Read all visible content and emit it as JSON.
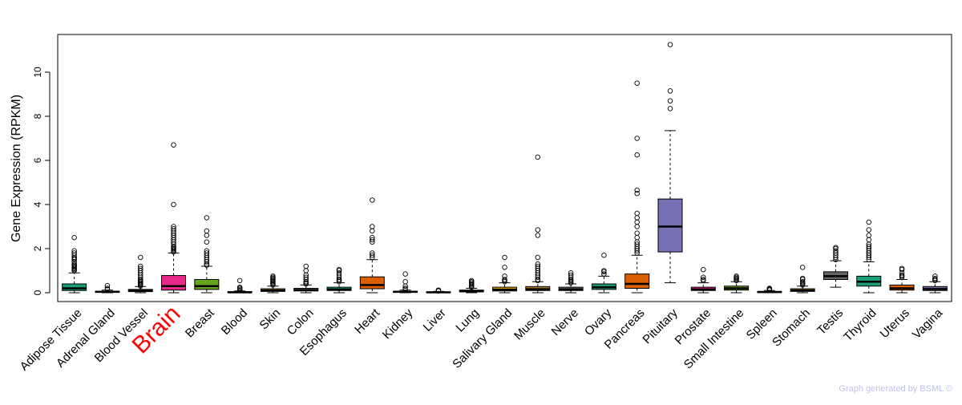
{
  "chart_data": {
    "type": "boxplot",
    "title": "",
    "ylabel": "Gene Expression (RPKM)",
    "xlabel": "",
    "ylim": [
      -0.4,
      11.6
    ],
    "yticks": [
      0,
      2,
      4,
      6,
      8,
      10
    ],
    "highlight": "Brain",
    "highlight_color": "#ff0000",
    "footer": "Graph generated by BSML ©",
    "footer_color": "#c0c0f0",
    "categories": [
      {
        "name": "Adipose Tissue",
        "color": "#1b9e77",
        "whisker_low": 0.0,
        "q1": 0.1,
        "median": 0.2,
        "q3": 0.4,
        "whisker_high": 0.9,
        "outliers": [
          1.0,
          1.05,
          1.1,
          1.15,
          1.2,
          1.25,
          1.3,
          1.4,
          1.5,
          1.55,
          1.6,
          1.7,
          1.8,
          1.9,
          2.5
        ]
      },
      {
        "name": "Adrenal Gland",
        "color": "#a0a0a0",
        "whisker_low": 0.0,
        "q1": 0.02,
        "median": 0.04,
        "q3": 0.07,
        "whisker_high": 0.12,
        "outliers": [
          0.15,
          0.2,
          0.32
        ]
      },
      {
        "name": "Blood Vessel",
        "color": "#7570b3",
        "whisker_low": 0.0,
        "q1": 0.05,
        "median": 0.1,
        "q3": 0.15,
        "whisker_high": 0.28,
        "outliers": [
          0.3,
          0.35,
          0.4,
          0.45,
          0.5,
          0.55,
          0.6,
          0.7,
          0.8,
          0.9,
          1.0,
          1.1,
          1.2,
          1.6
        ]
      },
      {
        "name": "Brain",
        "color": "#e7298a",
        "whisker_low": 0.0,
        "q1": 0.12,
        "median": 0.3,
        "q3": 0.78,
        "whisker_high": 1.8,
        "outliers": [
          1.85,
          1.9,
          1.95,
          2.0,
          2.05,
          2.1,
          2.2,
          2.3,
          2.4,
          2.5,
          2.6,
          2.7,
          2.8,
          2.9,
          3.0,
          4.0,
          6.7
        ]
      },
      {
        "name": "Breast",
        "color": "#66a61e",
        "whisker_low": 0.0,
        "q1": 0.15,
        "median": 0.3,
        "q3": 0.6,
        "whisker_high": 1.2,
        "outliers": [
          1.25,
          1.3,
          1.4,
          1.5,
          1.6,
          1.7,
          1.8,
          1.9,
          2.3,
          2.6,
          2.8,
          3.4
        ]
      },
      {
        "name": "Blood",
        "color": "#e6ab02",
        "whisker_low": 0.0,
        "q1": 0.01,
        "median": 0.02,
        "q3": 0.05,
        "whisker_high": 0.08,
        "outliers": [
          0.1,
          0.15,
          0.2,
          0.25,
          0.55
        ]
      },
      {
        "name": "Skin",
        "color": "#a6761d",
        "whisker_low": 0.0,
        "q1": 0.06,
        "median": 0.1,
        "q3": 0.18,
        "whisker_high": 0.3,
        "outliers": [
          0.35,
          0.4,
          0.45,
          0.5,
          0.55,
          0.6,
          0.65,
          0.7,
          0.75
        ]
      },
      {
        "name": "Colon",
        "color": "#666666",
        "whisker_low": 0.0,
        "q1": 0.08,
        "median": 0.12,
        "q3": 0.2,
        "whisker_high": 0.35,
        "outliers": [
          0.4,
          0.45,
          0.5,
          0.6,
          0.7,
          0.8,
          1.0,
          1.2
        ]
      },
      {
        "name": "Esophagus",
        "color": "#1b9e77",
        "whisker_low": 0.0,
        "q1": 0.1,
        "median": 0.15,
        "q3": 0.25,
        "whisker_high": 0.45,
        "outliers": [
          0.5,
          0.55,
          0.6,
          0.7,
          0.8,
          0.9,
          1.0,
          1.05
        ]
      },
      {
        "name": "Heart",
        "color": "#d95f02",
        "whisker_low": 0.0,
        "q1": 0.18,
        "median": 0.35,
        "q3": 0.72,
        "whisker_high": 1.5,
        "outliers": [
          1.6,
          1.7,
          1.8,
          2.3,
          2.4,
          2.5,
          2.8,
          3.0,
          4.2
        ]
      },
      {
        "name": "Kidney",
        "color": "#7570b3",
        "whisker_low": 0.0,
        "q1": 0.02,
        "median": 0.04,
        "q3": 0.07,
        "whisker_high": 0.12,
        "outliers": [
          0.15,
          0.2,
          0.3,
          0.5,
          0.85
        ]
      },
      {
        "name": "Liver",
        "color": "#e7298a",
        "whisker_low": 0.0,
        "q1": 0.01,
        "median": 0.02,
        "q3": 0.04,
        "whisker_high": 0.06,
        "outliers": [
          0.08,
          0.1,
          0.12
        ]
      },
      {
        "name": "Lung",
        "color": "#66a61e",
        "whisker_low": 0.0,
        "q1": 0.04,
        "median": 0.07,
        "q3": 0.12,
        "whisker_high": 0.2,
        "outliers": [
          0.25,
          0.3,
          0.35,
          0.4,
          0.45,
          0.5,
          0.55
        ]
      },
      {
        "name": "Salivary Gland",
        "color": "#e6ab02",
        "whisker_low": 0.0,
        "q1": 0.08,
        "median": 0.14,
        "q3": 0.25,
        "whisker_high": 0.45,
        "outliers": [
          0.5,
          0.55,
          0.6,
          0.75,
          1.15,
          1.6
        ]
      },
      {
        "name": "Muscle",
        "color": "#a6761d",
        "whisker_low": 0.0,
        "q1": 0.1,
        "median": 0.16,
        "q3": 0.28,
        "whisker_high": 0.5,
        "outliers": [
          0.55,
          0.6,
          0.7,
          0.8,
          0.9,
          1.0,
          1.1,
          1.2,
          1.3,
          1.6,
          2.6,
          2.85,
          6.15
        ]
      },
      {
        "name": "Nerve",
        "color": "#666666",
        "whisker_low": 0.0,
        "q1": 0.1,
        "median": 0.15,
        "q3": 0.25,
        "whisker_high": 0.4,
        "outliers": [
          0.45,
          0.5,
          0.55,
          0.6,
          0.7,
          0.8,
          0.9
        ]
      },
      {
        "name": "Ovary",
        "color": "#1b9e77",
        "whisker_low": 0.0,
        "q1": 0.15,
        "median": 0.25,
        "q3": 0.4,
        "whisker_high": 0.75,
        "outliers": [
          0.85,
          0.95,
          1.0,
          1.7
        ]
      },
      {
        "name": "Pancreas",
        "color": "#d95f02",
        "whisker_low": 0.0,
        "q1": 0.2,
        "median": 0.4,
        "q3": 0.85,
        "whisker_high": 1.7,
        "outliers": [
          1.8,
          1.9,
          2.0,
          2.1,
          2.2,
          2.3,
          2.5,
          2.7,
          3.0,
          3.2,
          3.4,
          3.6,
          4.5,
          4.65,
          6.25,
          7.0,
          9.5
        ]
      },
      {
        "name": "Pituitary",
        "color": "#7570b3",
        "whisker_low": 0.45,
        "q1": 1.85,
        "median": 3.0,
        "q3": 4.25,
        "whisker_high": 7.35,
        "outliers": [
          8.35,
          8.7,
          9.15,
          11.25
        ]
      },
      {
        "name": "Prostate",
        "color": "#e7298a",
        "whisker_low": 0.0,
        "q1": 0.1,
        "median": 0.15,
        "q3": 0.25,
        "whisker_high": 0.45,
        "outliers": [
          0.55,
          0.6,
          0.7,
          1.05
        ]
      },
      {
        "name": "Small Intestine",
        "color": "#66a61e",
        "whisker_low": 0.0,
        "q1": 0.12,
        "median": 0.2,
        "q3": 0.3,
        "whisker_high": 0.5,
        "outliers": [
          0.55,
          0.6,
          0.65,
          0.7,
          0.75
        ]
      },
      {
        "name": "Spleen",
        "color": "#e6ab02",
        "whisker_low": 0.0,
        "q1": 0.01,
        "median": 0.03,
        "q3": 0.06,
        "whisker_high": 0.1,
        "outliers": [
          0.12,
          0.15,
          0.18,
          0.2
        ]
      },
      {
        "name": "Stomach",
        "color": "#a6761d",
        "whisker_low": 0.0,
        "q1": 0.06,
        "median": 0.1,
        "q3": 0.18,
        "whisker_high": 0.3,
        "outliers": [
          0.35,
          0.4,
          0.45,
          0.5,
          0.6,
          0.65,
          1.15
        ]
      },
      {
        "name": "Testis",
        "color": "#666666",
        "whisker_low": 0.25,
        "q1": 0.6,
        "median": 0.75,
        "q3": 0.95,
        "whisker_high": 1.45,
        "outliers": [
          1.5,
          1.6,
          1.7,
          1.8,
          1.9,
          2.0,
          2.05
        ]
      },
      {
        "name": "Thyroid",
        "color": "#1b9e77",
        "whisker_low": 0.0,
        "q1": 0.3,
        "median": 0.5,
        "q3": 0.75,
        "whisker_high": 1.4,
        "outliers": [
          1.5,
          1.6,
          1.7,
          1.8,
          1.9,
          2.0,
          2.1,
          2.2,
          2.4,
          2.6,
          2.85,
          3.2
        ]
      },
      {
        "name": "Uterus",
        "color": "#d95f02",
        "whisker_low": 0.0,
        "q1": 0.12,
        "median": 0.2,
        "q3": 0.35,
        "whisker_high": 0.6,
        "outliers": [
          0.7,
          0.75,
          0.8,
          0.9,
          1.05,
          1.1
        ]
      },
      {
        "name": "Vagina",
        "color": "#7570b3",
        "whisker_low": 0.0,
        "q1": 0.1,
        "median": 0.17,
        "q3": 0.28,
        "whisker_high": 0.5,
        "outliers": [
          0.55,
          0.6,
          0.65,
          0.75
        ]
      }
    ]
  }
}
